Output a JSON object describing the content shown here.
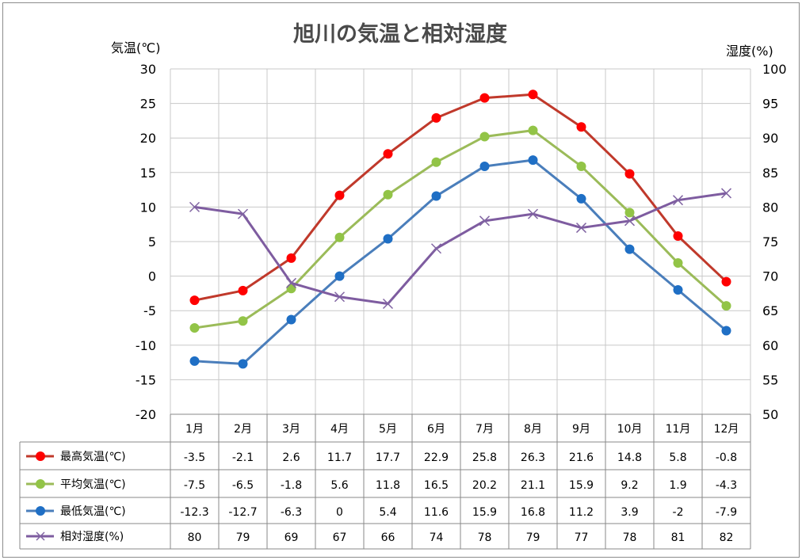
{
  "chart_data": {
    "type": "line",
    "title": "旭川の気温と相対湿度",
    "y_left_label": "気温(℃)",
    "y_right_label": "湿度(%)",
    "y_left_range": [
      -20,
      30
    ],
    "y_left_ticks": [
      "30",
      "25",
      "20",
      "15",
      "10",
      "5",
      "0",
      "-5",
      "-10",
      "-15",
      "-20"
    ],
    "y_right_range": [
      50,
      100
    ],
    "y_right_ticks": [
      "100",
      "95",
      "90",
      "85",
      "80",
      "75",
      "70",
      "65",
      "60",
      "55",
      "50"
    ],
    "grid": true,
    "legend": "data-table",
    "categories": [
      "1月",
      "2月",
      "3月",
      "4月",
      "5月",
      "6月",
      "7月",
      "8月",
      "9月",
      "10月",
      "11月",
      "12月"
    ],
    "series": [
      {
        "name": "最高気温(℃)",
        "axis": "left",
        "marker": "circle",
        "color": "#c0392b",
        "marker_color": "#ff0000",
        "values": [
          -3.5,
          -2.1,
          2.6,
          11.7,
          17.7,
          22.9,
          25.8,
          26.3,
          21.6,
          14.8,
          5.8,
          -0.8
        ],
        "labels": [
          "-3.5",
          "-2.1",
          "2.6",
          "11.7",
          "17.7",
          "22.9",
          "25.8",
          "26.3",
          "21.6",
          "14.8",
          "5.8",
          "-0.8"
        ]
      },
      {
        "name": "平均気温(℃)",
        "axis": "left",
        "marker": "circle",
        "color": "#9bbb59",
        "marker_color": "#92c447",
        "values": [
          -7.5,
          -6.5,
          -1.8,
          5.6,
          11.8,
          16.5,
          20.2,
          21.1,
          15.9,
          9.2,
          1.9,
          -4.3
        ],
        "labels": [
          "-7.5",
          "-6.5",
          "-1.8",
          "5.6",
          "11.8",
          "16.5",
          "20.2",
          "21.1",
          "15.9",
          "9.2",
          "1.9",
          "-4.3"
        ]
      },
      {
        "name": "最低気温(℃)",
        "axis": "left",
        "marker": "circle",
        "color": "#4a7ebb",
        "marker_color": "#1f6fc5",
        "values": [
          -12.3,
          -12.7,
          -6.3,
          0,
          5.4,
          11.6,
          15.9,
          16.8,
          11.2,
          3.9,
          -2,
          -7.9
        ],
        "labels": [
          "-12.3",
          "-12.7",
          "-6.3",
          "0",
          "5.4",
          "11.6",
          "15.9",
          "16.8",
          "11.2",
          "3.9",
          "-2",
          "-7.9"
        ]
      },
      {
        "name": "相対湿度(%)",
        "axis": "right",
        "marker": "x",
        "color": "#7e5ca0",
        "marker_color": "#8064a2",
        "values": [
          80,
          79,
          69,
          67,
          66,
          74,
          78,
          79,
          77,
          78,
          81,
          82
        ],
        "labels": [
          "80",
          "79",
          "69",
          "67",
          "66",
          "74",
          "78",
          "79",
          "77",
          "78",
          "81",
          "82"
        ]
      }
    ]
  }
}
